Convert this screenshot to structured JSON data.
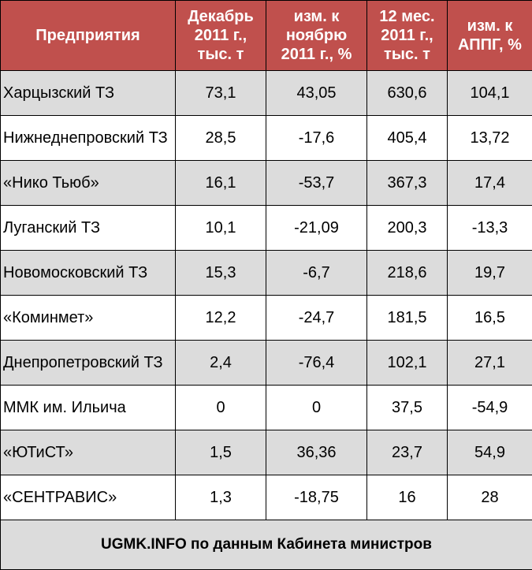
{
  "table": {
    "headers": [
      "Предприятия",
      "Декабрь\n2011 г.,\nтыс. т",
      "изм. к\nноябрю\n2011 г., %",
      "12 мес.\n2011 г.,\nтыс. т",
      "изм. к\nАППГ, %"
    ],
    "rows": [
      [
        "Харцызский ТЗ",
        "73,1",
        "43,05",
        "630,6",
        "104,1"
      ],
      [
        "Нижнеднепровский ТЗ",
        "28,5",
        "-17,6",
        "405,4",
        "13,72"
      ],
      [
        "«Нико Тьюб»",
        "16,1",
        "-53,7",
        "367,3",
        "17,4"
      ],
      [
        "Луганский ТЗ",
        "10,1",
        "-21,09",
        "200,3",
        "-13,3"
      ],
      [
        "Новомосковский ТЗ",
        "15,3",
        "-6,7",
        "218,6",
        "19,7"
      ],
      [
        "«Коминмет»",
        "12,2",
        "-24,7",
        "181,5",
        "16,5"
      ],
      [
        "Днепропетровский ТЗ",
        "2,4",
        "-76,4",
        "102,1",
        "27,1"
      ],
      [
        "ММК им. Ильича",
        "0",
        "0",
        "37,5",
        "-54,9"
      ],
      [
        "«ЮТиСТ»",
        "1,5",
        "36,36",
        "23,7",
        "54,9"
      ],
      [
        "«СЕНТРАВИС»",
        "1,3",
        "-18,75",
        "16",
        "28"
      ]
    ],
    "footer": "UGMK.INFO по данным Кабинета министров"
  },
  "colors": {
    "header_bg": "#c0504d",
    "header_text": "#ffffff",
    "row_alt_bg": "#dcdcdc"
  }
}
